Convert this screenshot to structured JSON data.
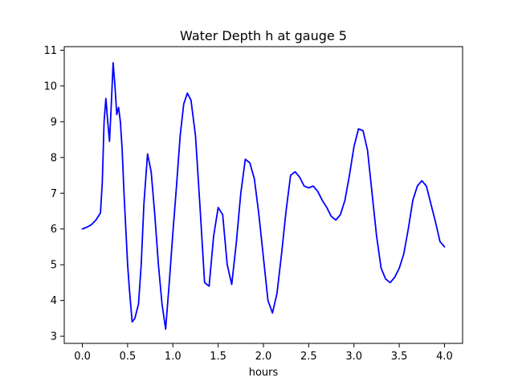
{
  "chart_data": {
    "type": "line",
    "title": "Water Depth h at gauge 5",
    "xlabel": "hours",
    "ylabel": "",
    "xlim": [
      -0.2,
      4.2
    ],
    "ylim": [
      2.8,
      11.1
    ],
    "xticks": [
      0.0,
      0.5,
      1.0,
      1.5,
      2.0,
      2.5,
      3.0,
      3.5,
      4.0
    ],
    "xtick_labels": [
      "0.0",
      "0.5",
      "1.0",
      "1.5",
      "2.0",
      "2.5",
      "3.0",
      "3.5",
      "4.0"
    ],
    "yticks": [
      3,
      4,
      5,
      6,
      7,
      8,
      9,
      10,
      11
    ],
    "ytick_labels": [
      "3",
      "4",
      "5",
      "6",
      "7",
      "8",
      "9",
      "10",
      "11"
    ],
    "grid": false,
    "series": [
      {
        "color": "#0000ff",
        "x": [
          0.0,
          0.05,
          0.1,
          0.15,
          0.2,
          0.22,
          0.24,
          0.26,
          0.28,
          0.3,
          0.32,
          0.34,
          0.36,
          0.38,
          0.4,
          0.42,
          0.44,
          0.46,
          0.48,
          0.5,
          0.52,
          0.55,
          0.58,
          0.62,
          0.65,
          0.68,
          0.72,
          0.76,
          0.8,
          0.84,
          0.88,
          0.92,
          0.96,
          1.0,
          1.04,
          1.08,
          1.12,
          1.16,
          1.2,
          1.25,
          1.3,
          1.35,
          1.4,
          1.45,
          1.5,
          1.55,
          1.6,
          1.65,
          1.7,
          1.75,
          1.8,
          1.85,
          1.9,
          1.95,
          2.0,
          2.05,
          2.1,
          2.15,
          2.2,
          2.25,
          2.3,
          2.35,
          2.4,
          2.45,
          2.5,
          2.55,
          2.6,
          2.65,
          2.7,
          2.75,
          2.8,
          2.85,
          2.9,
          2.95,
          3.0,
          3.05,
          3.1,
          3.15,
          3.2,
          3.25,
          3.3,
          3.35,
          3.4,
          3.45,
          3.5,
          3.55,
          3.6,
          3.65,
          3.7,
          3.75,
          3.8,
          3.85,
          3.9,
          3.95,
          4.0
        ],
        "values": [
          6.0,
          6.05,
          6.12,
          6.25,
          6.45,
          7.3,
          9.0,
          9.65,
          9.0,
          8.45,
          9.5,
          10.65,
          10.0,
          9.2,
          9.4,
          9.0,
          8.2,
          7.0,
          6.0,
          5.0,
          4.3,
          3.4,
          3.5,
          3.9,
          5.0,
          6.7,
          8.1,
          7.6,
          6.4,
          5.0,
          3.9,
          3.2,
          4.5,
          5.9,
          7.2,
          8.6,
          9.5,
          9.8,
          9.6,
          8.6,
          6.6,
          4.5,
          4.4,
          5.8,
          6.6,
          6.4,
          5.0,
          4.45,
          5.6,
          7.0,
          7.95,
          7.85,
          7.4,
          6.4,
          5.2,
          4.0,
          3.65,
          4.2,
          5.3,
          6.5,
          7.5,
          7.6,
          7.45,
          7.2,
          7.15,
          7.2,
          7.05,
          6.8,
          6.6,
          6.35,
          6.25,
          6.4,
          6.8,
          7.5,
          8.3,
          8.8,
          8.75,
          8.2,
          7.0,
          5.8,
          4.9,
          4.6,
          4.5,
          4.65,
          4.9,
          5.3,
          6.0,
          6.8,
          7.2,
          7.35,
          7.2,
          6.7,
          6.2,
          5.65,
          5.5
        ]
      }
    ]
  }
}
